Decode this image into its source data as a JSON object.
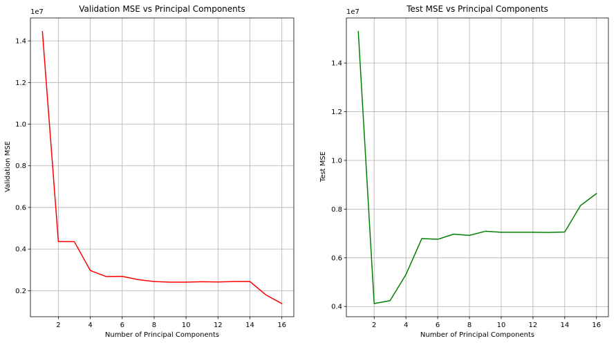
{
  "chart_data": [
    {
      "type": "line",
      "title": "Validation MSE vs Principal Components",
      "xlabel": "Number of Principal Components",
      "ylabel": "Validation MSE",
      "offset_label": "1e7",
      "x": [
        1,
        2,
        3,
        4,
        5,
        6,
        7,
        8,
        9,
        10,
        11,
        12,
        13,
        14,
        15,
        16
      ],
      "series": [
        {
          "color": "#ff0000",
          "values": [
            14450000,
            4360000,
            4360000,
            2970000,
            2680000,
            2690000,
            2530000,
            2440000,
            2410000,
            2410000,
            2430000,
            2420000,
            2440000,
            2440000,
            1800000,
            1380000
          ]
        }
      ],
      "xlim": [
        0.25,
        16.75
      ],
      "ylim": [
        750000,
        15100000
      ],
      "xticks": [
        2,
        4,
        6,
        8,
        10,
        12,
        14,
        16
      ],
      "yticks": [
        2000000,
        4000000,
        6000000,
        8000000,
        10000000,
        12000000,
        14000000
      ],
      "xtick_labels": [
        "2",
        "4",
        "6",
        "8",
        "10",
        "12",
        "14",
        "16"
      ],
      "ytick_labels": [
        "0.2",
        "0.4",
        "0.6",
        "0.8",
        "1.0",
        "1.2",
        "1.4"
      ],
      "grid": true
    },
    {
      "type": "line",
      "title": "Test MSE vs Principal Components",
      "xlabel": "Number of Principal Components",
      "ylabel": "Test MSE",
      "offset_label": "1e7",
      "x": [
        1,
        2,
        3,
        4,
        5,
        6,
        7,
        8,
        9,
        10,
        11,
        12,
        13,
        14,
        15,
        16
      ],
      "series": [
        {
          "color": "#008000",
          "values": [
            15300000,
            4120000,
            4240000,
            5310000,
            6790000,
            6760000,
            6970000,
            6920000,
            7090000,
            7050000,
            7050000,
            7050000,
            7040000,
            7060000,
            8150000,
            8640000
          ]
        }
      ],
      "xlim": [
        0.25,
        16.75
      ],
      "ylim": [
        3580000,
        15850000
      ],
      "xticks": [
        2,
        4,
        6,
        8,
        10,
        12,
        14,
        16
      ],
      "yticks": [
        4000000,
        6000000,
        8000000,
        10000000,
        12000000,
        14000000
      ],
      "xtick_labels": [
        "2",
        "4",
        "6",
        "8",
        "10",
        "12",
        "14",
        "16"
      ],
      "ytick_labels": [
        "0.4",
        "0.6",
        "0.8",
        "1.0",
        "1.2",
        "1.4"
      ],
      "grid": true
    }
  ]
}
